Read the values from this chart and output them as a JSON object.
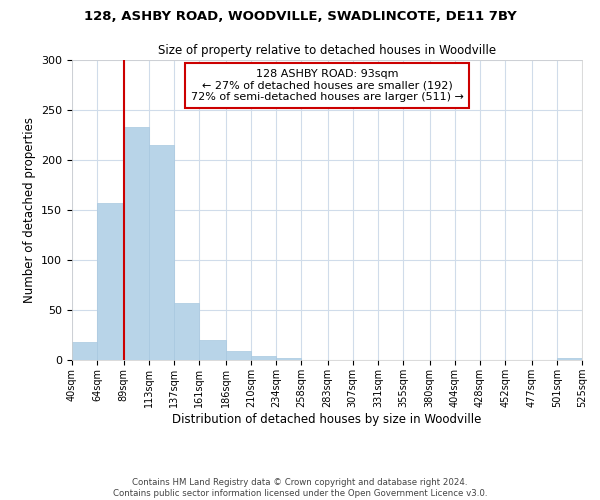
{
  "title": "128, ASHBY ROAD, WOODVILLE, SWADLINCOTE, DE11 7BY",
  "subtitle": "Size of property relative to detached houses in Woodville",
  "xlabel": "Distribution of detached houses by size in Woodville",
  "ylabel": "Number of detached properties",
  "bar_color": "#b8d4e8",
  "bar_edge_color": "#a8c8e0",
  "bin_edges": [
    40,
    64,
    89,
    113,
    137,
    161,
    186,
    210,
    234,
    258,
    283,
    307,
    331,
    355,
    380,
    404,
    428,
    452,
    477,
    501,
    525
  ],
  "bar_heights": [
    18,
    157,
    233,
    215,
    57,
    20,
    9,
    4,
    2,
    0,
    0,
    0,
    0,
    0,
    0,
    0,
    0,
    0,
    0,
    2
  ],
  "tick_labels": [
    "40sqm",
    "64sqm",
    "89sqm",
    "113sqm",
    "137sqm",
    "161sqm",
    "186sqm",
    "210sqm",
    "234sqm",
    "258sqm",
    "283sqm",
    "307sqm",
    "331sqm",
    "355sqm",
    "380sqm",
    "404sqm",
    "428sqm",
    "452sqm",
    "477sqm",
    "501sqm",
    "525sqm"
  ],
  "ylim": [
    0,
    300
  ],
  "yticks": [
    0,
    50,
    100,
    150,
    200,
    250,
    300
  ],
  "vline_x": 89,
  "vline_color": "#cc0000",
  "annotation_title": "128 ASHBY ROAD: 93sqm",
  "annotation_line1": "← 27% of detached houses are smaller (192)",
  "annotation_line2": "72% of semi-detached houses are larger (511) →",
  "annotation_box_color": "#ffffff",
  "annotation_box_edge": "#cc0000",
  "footer_line1": "Contains HM Land Registry data © Crown copyright and database right 2024.",
  "footer_line2": "Contains public sector information licensed under the Open Government Licence v3.0.",
  "background_color": "#ffffff",
  "grid_color": "#d0dcea"
}
